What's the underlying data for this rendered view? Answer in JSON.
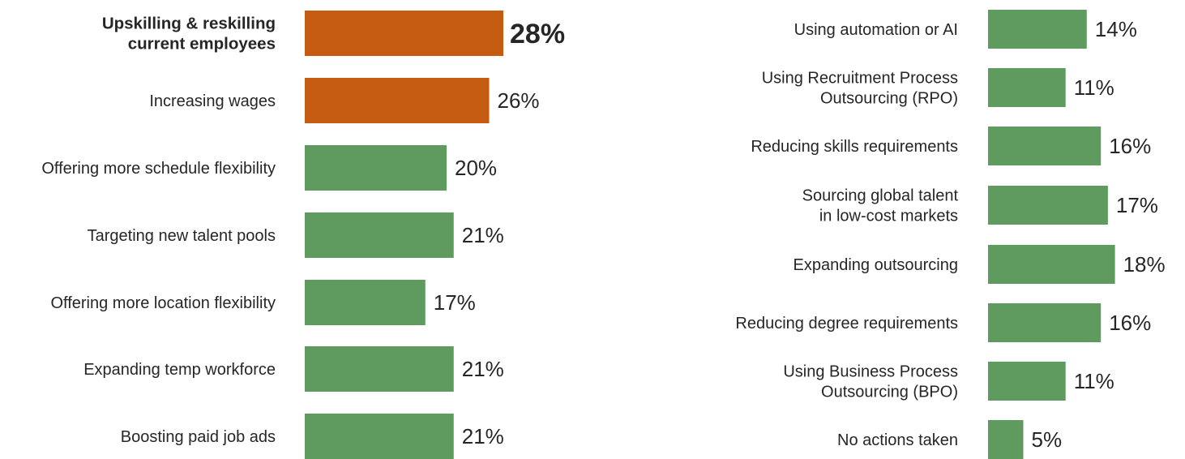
{
  "colors": {
    "highlight": "#c55a11",
    "default": "#5f9a5f",
    "text": "#262626"
  },
  "chart_data": [
    {
      "type": "bar",
      "orientation": "horizontal",
      "categories": [
        [
          "Upskilling & reskilling",
          "current employees"
        ],
        [
          "Increasing wages"
        ],
        [
          "Offering more schedule flexibility"
        ],
        [
          "Targeting new talent pools"
        ],
        [
          "Offering more location flexibility"
        ],
        [
          "Expanding temp workforce"
        ],
        [
          "Boosting paid job ads"
        ]
      ],
      "values": [
        28,
        26,
        20,
        21,
        17,
        21,
        21
      ],
      "value_labels": [
        "28%",
        "26%",
        "20%",
        "21%",
        "17%",
        "21%",
        "21%"
      ],
      "highlighted": [
        true,
        true,
        false,
        false,
        false,
        false,
        false
      ],
      "emphasized": [
        true,
        false,
        false,
        false,
        false,
        false,
        false
      ],
      "axis": {
        "min": 0
      }
    },
    {
      "type": "bar",
      "orientation": "horizontal",
      "categories": [
        [
          "Using automation or AI"
        ],
        [
          "Using Recruitment Process",
          "Outsourcing (RPO)"
        ],
        [
          "Reducing skills requirements"
        ],
        [
          "Sourcing global talent",
          "in low-cost markets"
        ],
        [
          "Expanding outsourcing"
        ],
        [
          "Reducing degree requirements"
        ],
        [
          "Using Business Process",
          "Outsourcing (BPO)"
        ],
        [
          "No actions taken"
        ]
      ],
      "values": [
        14,
        11,
        16,
        17,
        18,
        16,
        11,
        5
      ],
      "value_labels": [
        "14%",
        "11%",
        "16%",
        "17%",
        "18%",
        "16%",
        "11%",
        "5%"
      ],
      "highlighted": [
        false,
        false,
        false,
        false,
        false,
        false,
        false,
        false
      ],
      "emphasized": [
        false,
        false,
        false,
        false,
        false,
        false,
        false,
        false
      ],
      "axis": {
        "min": 0
      }
    }
  ]
}
